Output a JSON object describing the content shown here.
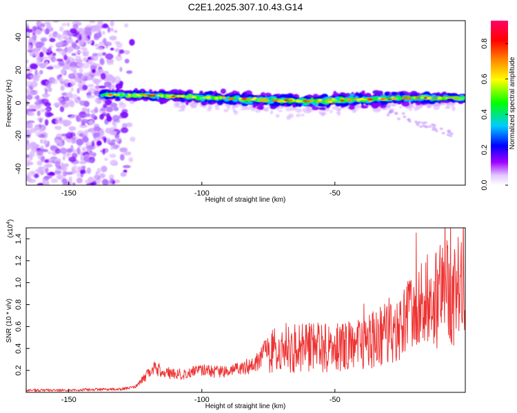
{
  "title": "C2E1.2025.307.10.43.G14",
  "chart_data": [
    {
      "type": "heatmap",
      "title": "C2E1.2025.307.10.43.G14",
      "xlabel": "Height of straight line (km)",
      "ylabel": "Frequency (Hz)",
      "xlim": [
        -166,
        -1
      ],
      "ylim": [
        -50,
        50
      ],
      "xticks": [
        -150,
        -100,
        -50
      ],
      "yticks": [
        -40,
        -20,
        0,
        20,
        40
      ],
      "grid": false,
      "colorbar": {
        "label": "Normalized spectral amplitude",
        "range": [
          0,
          0.93
        ],
        "ticks": [
          0.0,
          0.2,
          0.4,
          0.6,
          0.8
        ],
        "tick_labels": [
          "0.0",
          "0.2",
          "0.4",
          "0.6",
          "0.8"
        ],
        "colors": [
          "#ffffff",
          "#d9b3ff",
          "#8a00ff",
          "#0000ff",
          "#00ccff",
          "#00ff00",
          "#ffff00",
          "#ff8800",
          "#ff0000",
          "#ff0066"
        ]
      },
      "main_band": {
        "x": [
          -138,
          -120,
          -100,
          -80,
          -60,
          -40,
          -20,
          -1
        ],
        "center_hz": [
          5,
          4.5,
          3.5,
          2,
          1,
          2,
          3,
          3
        ],
        "halfwidth_hz": [
          3,
          3,
          4,
          5,
          5,
          5,
          4,
          3
        ]
      },
      "noise_region_x": [
        -166,
        -125
      ]
    },
    {
      "type": "line",
      "xlabel": "Height of straight line (km)",
      "ylabel": "SNR (10 * v/v)",
      "y_multiplier": "(x10^4)",
      "y_multiplier_base": "(x10",
      "y_multiplier_exp": "4",
      "y_multiplier_close": ")",
      "xlim": [
        -166,
        -1
      ],
      "ylim": [
        0,
        1.5
      ],
      "xticks": [
        -150,
        -100,
        -50
      ],
      "yticks": [
        0.2,
        0.4,
        0.6,
        0.8,
        1.0,
        1.2,
        1.4
      ],
      "series": [
        {
          "name": "SNR",
          "color": "#ee3333",
          "x": [
            -166,
            -150,
            -130,
            -125,
            -118,
            -110,
            -100,
            -90,
            -80,
            -75,
            -70,
            -60,
            -50,
            -40,
            -30,
            -20,
            -15,
            -10,
            -5,
            -1
          ],
          "values": [
            0.02,
            0.02,
            0.03,
            0.05,
            0.22,
            0.16,
            0.2,
            0.18,
            0.26,
            0.4,
            0.38,
            0.42,
            0.4,
            0.45,
            0.55,
            0.7,
            0.85,
            0.9,
            0.95,
            1.0
          ]
        }
      ]
    }
  ]
}
